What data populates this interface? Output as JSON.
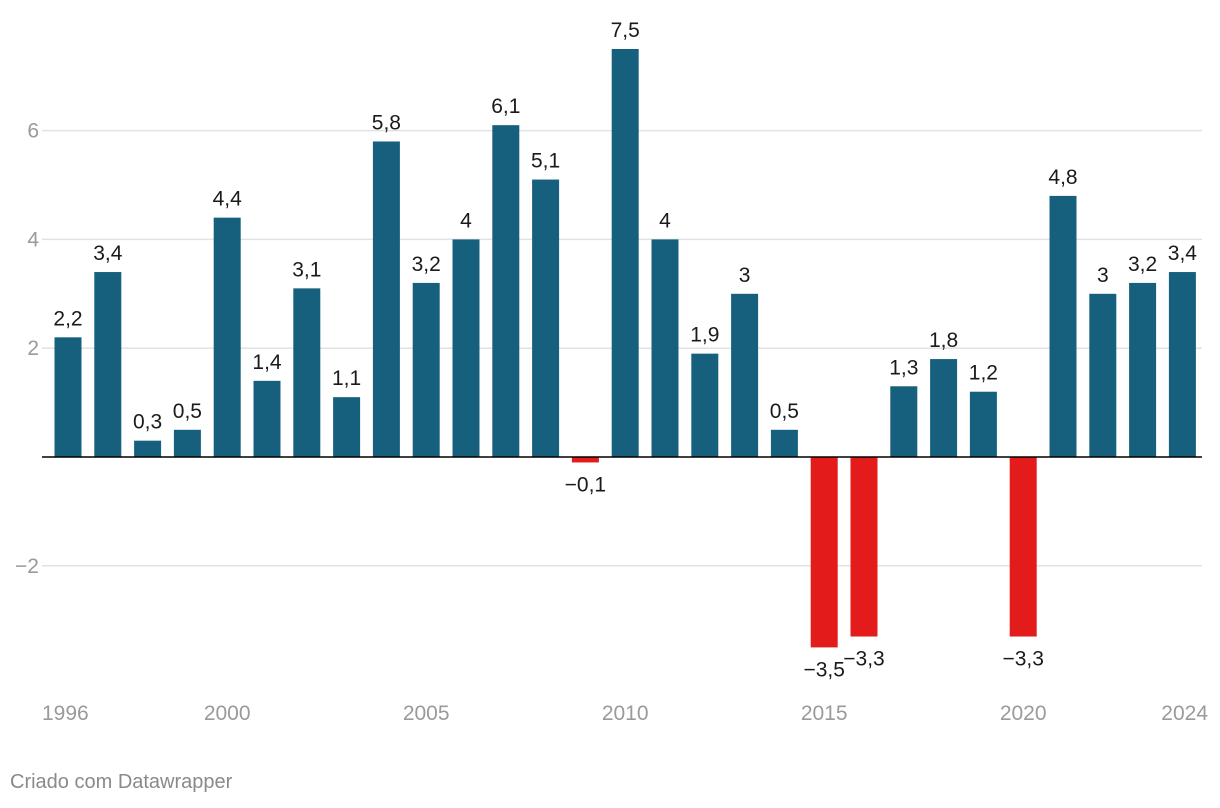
{
  "colors": {
    "positive": "#17607d",
    "negative": "#e31b1b",
    "grid": "#e2e2e2",
    "axis_text": "#9a9a9a",
    "label_text": "#1a1a1a"
  },
  "credit": "Criado com Datawrapper",
  "chart_data": {
    "type": "bar",
    "title": "",
    "xlabel": "",
    "ylabel": "",
    "categories": [
      "1996",
      "1997",
      "1998",
      "1999",
      "2000",
      "2001",
      "2002",
      "2003",
      "2004",
      "2005",
      "2006",
      "2007",
      "2008",
      "2009",
      "2010",
      "2011",
      "2012",
      "2013",
      "2014",
      "2015",
      "2016",
      "2017",
      "2018",
      "2019",
      "2020",
      "2021",
      "2022",
      "2023",
      "2024"
    ],
    "values": [
      2.2,
      3.4,
      0.3,
      0.5,
      4.4,
      1.4,
      3.1,
      1.1,
      5.8,
      3.2,
      4,
      6.1,
      5.1,
      -0.1,
      7.5,
      4,
      1.9,
      3,
      0.5,
      -3.5,
      -3.3,
      1.3,
      1.8,
      1.2,
      -3.3,
      4.8,
      3,
      3.2,
      3.4
    ],
    "data_labels": [
      "2,2",
      "3,4",
      "0,3",
      "0,5",
      "4,4",
      "1,4",
      "3,1",
      "1,1",
      "5,8",
      "3,2",
      "4",
      "6,1",
      "5,1",
      "−0,1",
      "7,5",
      "4",
      "1,9",
      "3",
      "0,5",
      "−3,5",
      "−3,3",
      "1,3",
      "1,8",
      "1,2",
      "−3,3",
      "4,8",
      "3",
      "3,2",
      "3,4"
    ],
    "y_ticks": [
      {
        "value": 6,
        "label": "6"
      },
      {
        "value": 4,
        "label": "4"
      },
      {
        "value": 2,
        "label": "2"
      },
      {
        "value": -2,
        "label": "−2"
      }
    ],
    "x_tick_labels": [
      {
        "category": "1996",
        "label": "1996"
      },
      {
        "category": "2000",
        "label": "2000"
      },
      {
        "category": "2005",
        "label": "2005"
      },
      {
        "category": "2010",
        "label": "2010"
      },
      {
        "category": "2015",
        "label": "2015"
      },
      {
        "category": "2020",
        "label": "2020"
      },
      {
        "category": "2024",
        "label": "2024"
      }
    ],
    "ylim": [
      -4.3,
      8.4
    ],
    "grid": true
  }
}
